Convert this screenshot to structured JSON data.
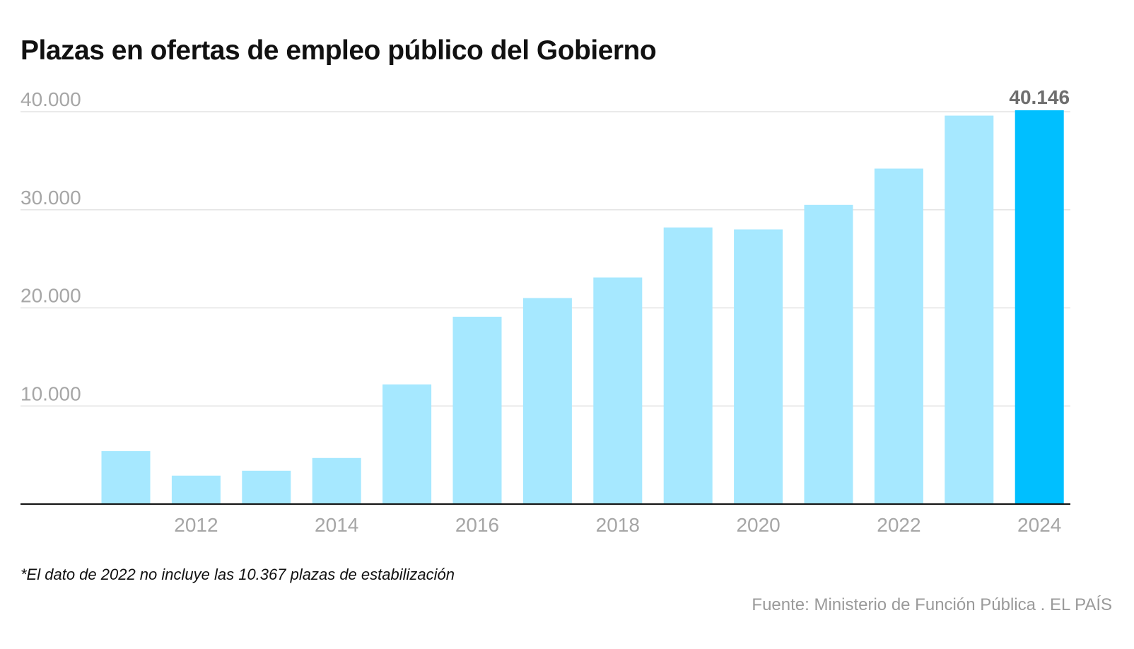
{
  "title": "Plazas en ofertas de empleo público del Gobierno",
  "footnote": "*El dato de 2022 no incluye las 10.367 plazas de estabilización",
  "source": "Fuente: Ministerio de Función Pública . EL PAÍS",
  "colors": {
    "bar": "#a6e8ff",
    "highlight": "#00bfff",
    "grid": "#e3e3e3",
    "axis": "#111111",
    "tick_label": "#a6a6a6",
    "value_label": "#6e6e6e"
  },
  "chart_data": {
    "type": "bar",
    "title": "Plazas en ofertas de empleo público del Gobierno",
    "xlabel": "",
    "ylabel": "",
    "categories": [
      "2011",
      "2012",
      "2013",
      "2014",
      "2015",
      "2016",
      "2017",
      "2018",
      "2019",
      "2020",
      "2021",
      "2022",
      "2023",
      "2024"
    ],
    "values": [
      5400,
      2900,
      3400,
      4700,
      12200,
      19100,
      21000,
      23100,
      28200,
      28000,
      30500,
      34200,
      39600,
      40146
    ],
    "highlight_index": 13,
    "highlight_label": "40.146",
    "ylim": [
      0,
      40000
    ],
    "yticks": [
      10000,
      20000,
      30000,
      40000
    ],
    "ytick_labels": [
      "10.000",
      "20.000",
      "30.000",
      "40.000"
    ],
    "xtick_labels": [
      "2012",
      "2014",
      "2016",
      "2018",
      "2020",
      "2022",
      "2024"
    ],
    "grid": true,
    "legend": "none"
  }
}
